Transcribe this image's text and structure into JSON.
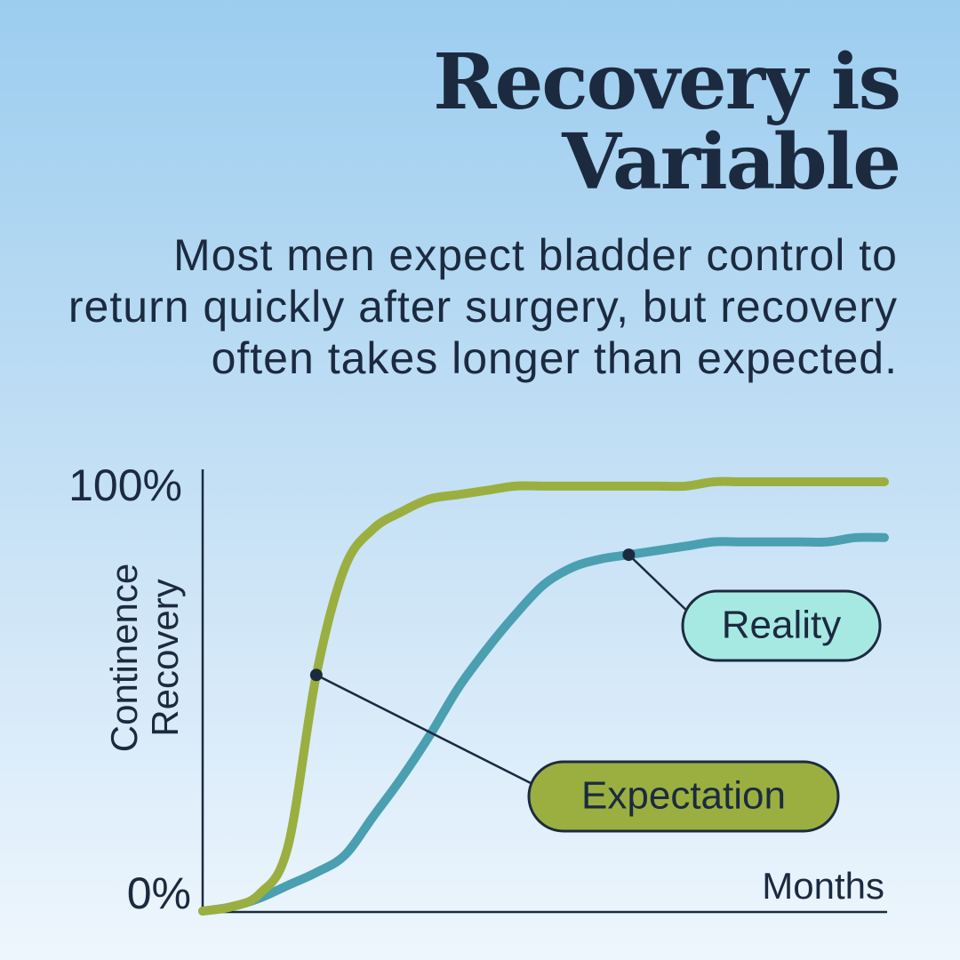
{
  "chart_data": {
    "type": "line",
    "title": "Recovery is Variable",
    "subtitle": "Most men expect bladder control to return quickly after surgery, but recovery often takes longer than expected.",
    "ylabel": "Continence Recovery",
    "xlabel": "Months",
    "categories": [
      null,
      null,
      null,
      null,
      null,
      null,
      null,
      null,
      null,
      null,
      null,
      null,
      null,
      null,
      null,
      null,
      null,
      null,
      null,
      null,
      null,
      null,
      null,
      null,
      null
    ],
    "series": [
      {
        "name": "Expectation",
        "color": "#9aaf3f",
        "values": [
          0,
          1,
          4,
          15,
          55,
          80,
          89,
          93,
          96,
          97,
          98,
          99,
          99,
          99,
          99,
          99,
          99,
          99,
          100,
          100,
          100,
          100,
          100,
          100,
          100
        ]
      },
      {
        "name": "Reality",
        "color": "#4a9fb0",
        "values": [
          0,
          1,
          3,
          6,
          9,
          13,
          22,
          31,
          41,
          52,
          61,
          69,
          76,
          80,
          82,
          83,
          84,
          85,
          86,
          86,
          86,
          86,
          86,
          87,
          87
        ]
      }
    ],
    "ylim": [
      0,
      100
    ],
    "yticks": [
      {
        "value": 0,
        "label": "0%"
      },
      {
        "value": 100,
        "label": "100%"
      }
    ]
  }
}
